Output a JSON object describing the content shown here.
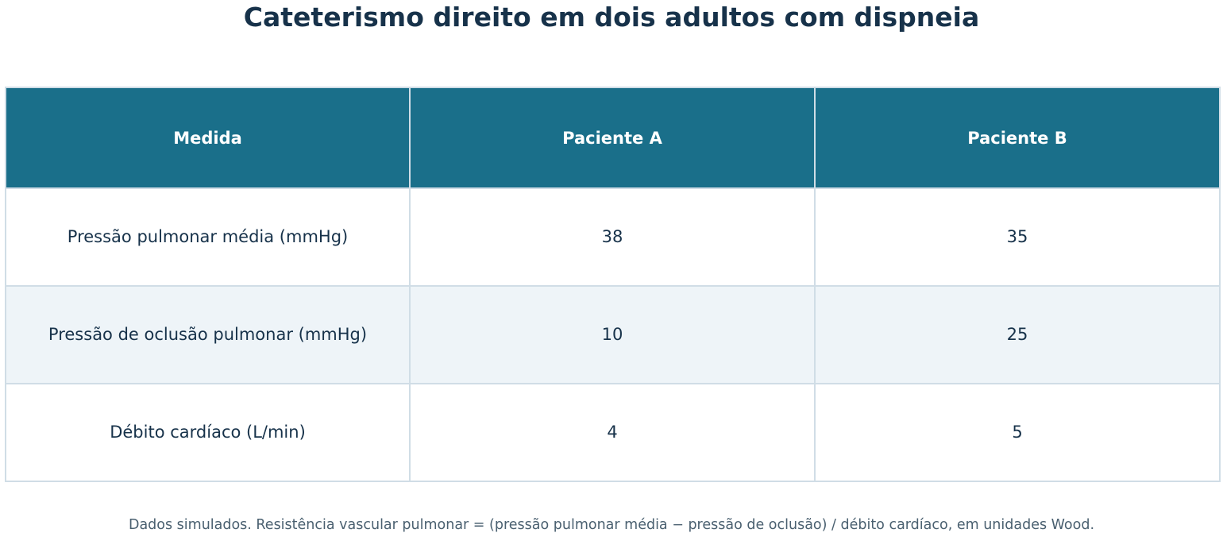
{
  "chart_data": {
    "type": "table",
    "title": "Cateterismo direito em dois adultos com dispneia",
    "columns": [
      "Medida",
      "Paciente A",
      "Paciente B"
    ],
    "rows": [
      [
        "Pressão pulmonar média (mmHg)",
        "38",
        "35"
      ],
      [
        "Pressão de oclusão pulmonar (mmHg)",
        "10",
        "25"
      ],
      [
        "Débito cardíaco (L/min)",
        "4",
        "5"
      ]
    ],
    "footnote": "Dados simulados. Resistência vascular pulmonar = (pressão pulmonar média − pressão de oclusão) / débito cardíaco, em unidades Wood."
  },
  "colors": {
    "header_bg": "#1a6f8a",
    "header_text": "#ffffff",
    "row_alt_bg": "#eef4f8",
    "border": "#d0dde6",
    "text": "#17324a"
  }
}
